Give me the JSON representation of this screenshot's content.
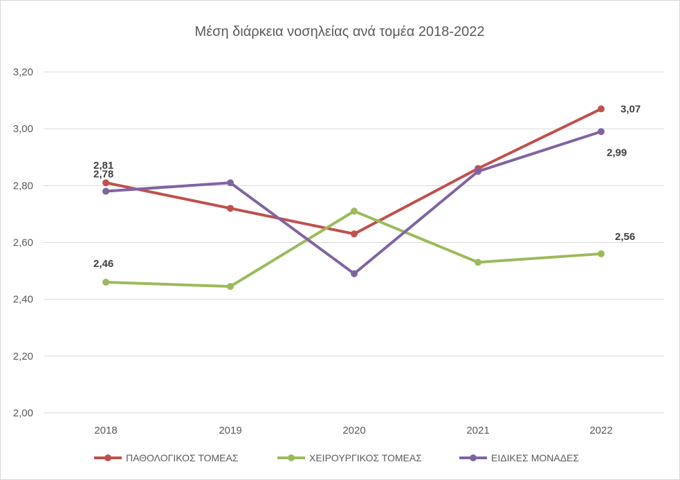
{
  "chart_data": {
    "type": "line",
    "title": "Μέση διάρκεια νοσηλείας ανά τομέα 2018-2022",
    "categories": [
      "2018",
      "2019",
      "2020",
      "2021",
      "2022"
    ],
    "ylim": [
      2.0,
      3.2
    ],
    "yticks": [
      2.0,
      2.2,
      2.4,
      2.6,
      2.8,
      3.0,
      3.2
    ],
    "ytick_labels": [
      "2,00",
      "2,20",
      "2,40",
      "2,60",
      "2,80",
      "3,00",
      "3,20"
    ],
    "grid": true,
    "legend_position": "bottom",
    "series": [
      {
        "name": "ΠΑΘΟΛΟΓΙΚΟΣ ΤΟΜΕΑΣ",
        "color": "#c0504d",
        "values": [
          2.81,
          2.72,
          2.63,
          2.86,
          3.07
        ],
        "data_labels": [
          "2,81",
          "",
          "",
          "",
          "3,07"
        ]
      },
      {
        "name": "ΧΕΙΡΟΥΡΓΙΚΟΣ ΤΟΜΕΑΣ",
        "color": "#9bbb59",
        "values": [
          2.46,
          2.445,
          2.71,
          2.53,
          2.56
        ],
        "data_labels": [
          "2,46",
          "",
          "",
          "",
          "2,56"
        ]
      },
      {
        "name": "ΕΙΔΙΚΕΣ ΜΟΝΑΔΕΣ",
        "color": "#8064a2",
        "values": [
          2.78,
          2.81,
          2.49,
          2.85,
          2.99
        ],
        "data_labels": [
          "2,78",
          "",
          "",
          "",
          "2,99"
        ]
      }
    ]
  }
}
